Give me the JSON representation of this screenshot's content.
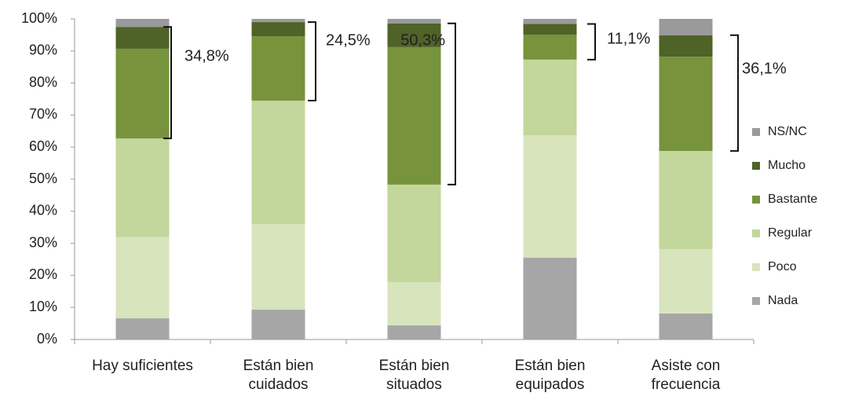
{
  "chart_data": {
    "type": "stacked_bar",
    "categories": [
      "Hay suficientes",
      "Están bien cuidados",
      "Están bien situados",
      "Están bien equipados",
      "Asiste con frecuencia"
    ],
    "series": [
      {
        "name": "Nada",
        "color": "#a6a6a6",
        "values": [
          6.6,
          9.3,
          4.4,
          25.5,
          8.1
        ]
      },
      {
        "name": "Poco",
        "color": "#d8e4bc",
        "values": [
          25.3,
          26.7,
          13.5,
          38.2,
          20.1
        ]
      },
      {
        "name": "Regular",
        "color": "#c3d69b",
        "values": [
          30.8,
          38.5,
          30.4,
          23.6,
          30.6
        ]
      },
      {
        "name": "Bastante",
        "color": "#77933c",
        "values": [
          28.0,
          20.1,
          42.9,
          7.8,
          29.4
        ]
      },
      {
        "name": "Mucho",
        "color": "#4f6228",
        "values": [
          6.8,
          4.4,
          7.4,
          3.3,
          6.7
        ]
      },
      {
        "name": "NS/NC",
        "color": "#9a9a9a",
        "values": [
          2.5,
          1.0,
          1.4,
          1.6,
          5.1
        ]
      }
    ],
    "annotations": [
      "34,8%",
      "24,5%",
      "50,3%",
      "11,1%",
      "36,1%"
    ],
    "ylim": [
      0,
      100
    ],
    "yticks": [
      {
        "value": 0,
        "label": "0%"
      },
      {
        "value": 10,
        "label": "10%"
      },
      {
        "value": 20,
        "label": "20%"
      },
      {
        "value": 30,
        "label": "30%"
      },
      {
        "value": 40,
        "label": "40%"
      },
      {
        "value": 50,
        "label": "50%"
      },
      {
        "value": 60,
        "label": "60%"
      },
      {
        "value": 70,
        "label": "70%"
      },
      {
        "value": 80,
        "label": "80%"
      },
      {
        "value": 90,
        "label": "90%"
      },
      {
        "value": 100,
        "label": "100%"
      }
    ],
    "legend": "right"
  }
}
